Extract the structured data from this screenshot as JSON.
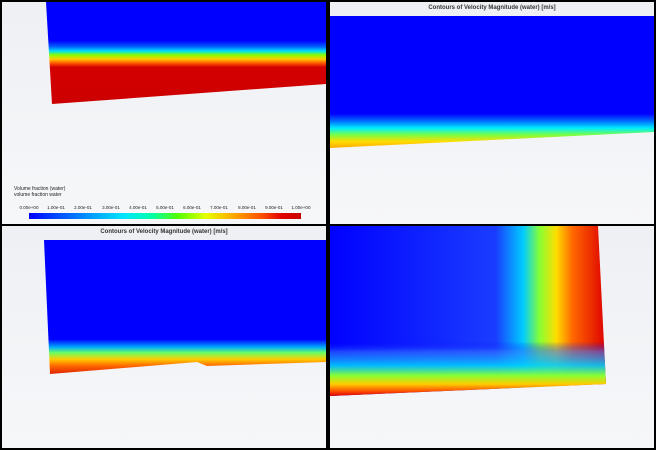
{
  "panels": {
    "top_left": {
      "legend": {
        "title_line1": "Volume fraction (water)",
        "title_line2": "volume fraction water",
        "ticks": [
          "0.00e+00",
          "1.00e-01",
          "2.00e-01",
          "3.00e-01",
          "4.00e-01",
          "5.00e-01",
          "6.00e-01",
          "7.00e-01",
          "8.00e-01",
          "9.00e-01",
          "1.00e+00"
        ]
      }
    },
    "top_right": {
      "title": "Contours of Velocity Magnitude (water)  [m/s]"
    },
    "bottom_left": {
      "title": "Contours of Velocity Magnitude (water)  [m/s]"
    },
    "bottom_right": {}
  },
  "colors": {
    "blue": "#0000ff",
    "red": "#cc0000",
    "background": "#f2f3f6",
    "divider": "#000000"
  }
}
